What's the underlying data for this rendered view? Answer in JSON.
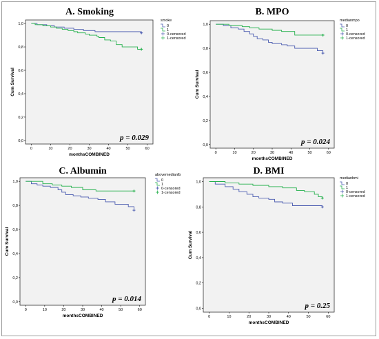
{
  "colors": {
    "group0": "#4a5bb0",
    "group1": "#22b04b",
    "plot_background": "#f2f2f2",
    "frame": "#333333"
  },
  "chart_data": [
    {
      "type": "line",
      "title": "A. Smoking",
      "pvalue": "p = 0.029",
      "xlabel": "monthsCOMBINED",
      "ylabel": "Cum Survival",
      "xlim": [
        -3,
        63
      ],
      "ylim": [
        -0.03,
        1.03
      ],
      "xticks": [
        0,
        10,
        20,
        30,
        40,
        50,
        60
      ],
      "xtick_labels": [
        "0",
        "10",
        "20",
        "30",
        "40",
        "50",
        "60"
      ],
      "yticks": [
        0,
        0.2,
        0.4,
        0.6,
        0.8,
        1.0
      ],
      "ytick_labels": [
        "0,0",
        "0,2",
        "0,4",
        "0,6",
        "0,8",
        "1,0"
      ],
      "legend": {
        "title": "smoke",
        "placement": "top-right",
        "items": [
          "0",
          "1",
          "0-censored",
          "1-censored"
        ]
      },
      "series": [
        {
          "name": "0",
          "color": "group0",
          "steps": [
            [
              0,
              1.0
            ],
            [
              3,
              0.99
            ],
            [
              8,
              0.98
            ],
            [
              12,
              0.97
            ],
            [
              17,
              0.96
            ],
            [
              22,
              0.95
            ],
            [
              27,
              0.94
            ],
            [
              33,
              0.93
            ],
            [
              57,
              0.93
            ]
          ],
          "censored": [
            [
              57,
              0.92
            ]
          ]
        },
        {
          "name": "1",
          "color": "group1",
          "steps": [
            [
              0,
              1.0
            ],
            [
              2,
              0.99
            ],
            [
              6,
              0.98
            ],
            [
              10,
              0.97
            ],
            [
              13,
              0.96
            ],
            [
              16,
              0.95
            ],
            [
              19,
              0.94
            ],
            [
              22,
              0.93
            ],
            [
              24,
              0.92
            ],
            [
              28,
              0.91
            ],
            [
              30,
              0.9
            ],
            [
              34,
              0.89
            ],
            [
              35,
              0.88
            ],
            [
              38,
              0.86
            ],
            [
              41,
              0.85
            ],
            [
              44,
              0.82
            ],
            [
              47,
              0.8
            ],
            [
              55,
              0.78
            ],
            [
              57,
              0.78
            ]
          ],
          "censored": [
            [
              57,
              0.78
            ]
          ]
        }
      ]
    },
    {
      "type": "line",
      "title": "B. MPO",
      "pvalue": "p = 0.024",
      "xlabel": "monthsCOMBINED",
      "ylabel": "Cum Survival",
      "xlim": [
        -3,
        63
      ],
      "ylim": [
        -0.03,
        1.03
      ],
      "xticks": [
        0,
        10,
        20,
        30,
        40,
        50,
        60
      ],
      "xtick_labels": [
        "0",
        "10",
        "20",
        "30",
        "40",
        "50",
        "60"
      ],
      "yticks": [
        0,
        0.2,
        0.4,
        0.6,
        0.8,
        1.0
      ],
      "ytick_labels": [
        "0,0",
        "0,2",
        "0,4",
        "0,6",
        "0,8",
        "1,0"
      ],
      "legend": {
        "title": "medianmpo",
        "placement": "top-right",
        "items": [
          "0",
          "1",
          "0-censored",
          "1-censored"
        ]
      },
      "series": [
        {
          "name": "0",
          "color": "group0",
          "steps": [
            [
              0,
              1.0
            ],
            [
              4,
              0.99
            ],
            [
              8,
              0.97
            ],
            [
              12,
              0.96
            ],
            [
              15,
              0.94
            ],
            [
              18,
              0.92
            ],
            [
              20,
              0.9
            ],
            [
              22,
              0.88
            ],
            [
              25,
              0.87
            ],
            [
              28,
              0.85
            ],
            [
              30,
              0.84
            ],
            [
              35,
              0.83
            ],
            [
              38,
              0.82
            ],
            [
              42,
              0.8
            ],
            [
              54,
              0.78
            ],
            [
              57,
              0.77
            ]
          ],
          "censored": [
            [
              57,
              0.76
            ]
          ]
        },
        {
          "name": "1",
          "color": "group1",
          "steps": [
            [
              0,
              1.0
            ],
            [
              7,
              0.99
            ],
            [
              14,
              0.98
            ],
            [
              18,
              0.97
            ],
            [
              23,
              0.96
            ],
            [
              30,
              0.95
            ],
            [
              35,
              0.94
            ],
            [
              42,
              0.91
            ],
            [
              57,
              0.91
            ]
          ],
          "censored": [
            [
              57,
              0.91
            ]
          ]
        }
      ]
    },
    {
      "type": "line",
      "title": "C. Albumin",
      "pvalue": "p = 0.014",
      "xlabel": "monthsCOMBINED",
      "ylabel": "Cum Survival",
      "xlim": [
        -3,
        63
      ],
      "ylim": [
        -0.03,
        1.03
      ],
      "xticks": [
        0,
        10,
        20,
        30,
        40,
        50,
        60
      ],
      "xtick_labels": [
        "0",
        "10",
        "20",
        "30",
        "40",
        "50",
        "60"
      ],
      "yticks": [
        0,
        0.2,
        0.4,
        0.6,
        0.8,
        1.0
      ],
      "ytick_labels": [
        "0,0",
        "0,2",
        "0,4",
        "0,6",
        "0,8",
        "1,0"
      ],
      "legend": {
        "title": "abovemedianlb",
        "placement": "top-right",
        "items": [
          "0",
          "1",
          "0-censored",
          "1-censored"
        ]
      },
      "series": [
        {
          "name": "0",
          "color": "group0",
          "steps": [
            [
              0,
              1.0
            ],
            [
              3,
              0.98
            ],
            [
              6,
              0.97
            ],
            [
              9,
              0.96
            ],
            [
              13,
              0.95
            ],
            [
              17,
              0.93
            ],
            [
              19,
              0.91
            ],
            [
              21,
              0.89
            ],
            [
              25,
              0.88
            ],
            [
              29,
              0.87
            ],
            [
              33,
              0.86
            ],
            [
              38,
              0.85
            ],
            [
              42,
              0.83
            ],
            [
              47,
              0.81
            ],
            [
              54,
              0.79
            ],
            [
              57,
              0.77
            ]
          ],
          "censored": [
            [
              57,
              0.76
            ]
          ]
        },
        {
          "name": "1",
          "color": "group1",
          "steps": [
            [
              0,
              1.0
            ],
            [
              9,
              0.98
            ],
            [
              14,
              0.97
            ],
            [
              19,
              0.96
            ],
            [
              24,
              0.95
            ],
            [
              30,
              0.93
            ],
            [
              37,
              0.92
            ],
            [
              57,
              0.92
            ]
          ],
          "censored": [
            [
              57,
              0.92
            ]
          ]
        }
      ]
    },
    {
      "type": "line",
      "title": "D. BMI",
      "pvalue": "p = 0.25",
      "xlabel": "monthsCOMBINED",
      "ylabel": "Cum Survival",
      "xlim": [
        -3,
        63
      ],
      "ylim": [
        -0.03,
        1.03
      ],
      "xticks": [
        0,
        10,
        20,
        30,
        40,
        50,
        60
      ],
      "xtick_labels": [
        "0",
        "10",
        "20",
        "30",
        "40",
        "50",
        "60"
      ],
      "yticks": [
        0,
        0.2,
        0.4,
        0.6,
        0.8,
        1.0
      ],
      "ytick_labels": [
        "0,0",
        "0,2",
        "0,4",
        "0,6",
        "0,8",
        "1,0"
      ],
      "legend": {
        "title": "medianbmi",
        "placement": "top-right",
        "items": [
          "0",
          "1",
          "0-censored",
          "1-censored"
        ]
      },
      "series": [
        {
          "name": "0",
          "color": "group0",
          "steps": [
            [
              0,
              1.0
            ],
            [
              3,
              0.98
            ],
            [
              8,
              0.96
            ],
            [
              12,
              0.94
            ],
            [
              15,
              0.92
            ],
            [
              19,
              0.9
            ],
            [
              22,
              0.88
            ],
            [
              25,
              0.87
            ],
            [
              30,
              0.86
            ],
            [
              33,
              0.84
            ],
            [
              37,
              0.83
            ],
            [
              42,
              0.81
            ],
            [
              57,
              0.81
            ]
          ],
          "censored": [
            [
              57,
              0.8
            ]
          ]
        },
        {
          "name": "1",
          "color": "group1",
          "steps": [
            [
              0,
              1.0
            ],
            [
              8,
              0.99
            ],
            [
              15,
              0.98
            ],
            [
              22,
              0.97
            ],
            [
              30,
              0.96
            ],
            [
              37,
              0.95
            ],
            [
              44,
              0.93
            ],
            [
              48,
              0.92
            ],
            [
              53,
              0.9
            ],
            [
              55,
              0.88
            ],
            [
              57,
              0.87
            ]
          ],
          "censored": [
            [
              57,
              0.87
            ]
          ]
        }
      ]
    }
  ]
}
